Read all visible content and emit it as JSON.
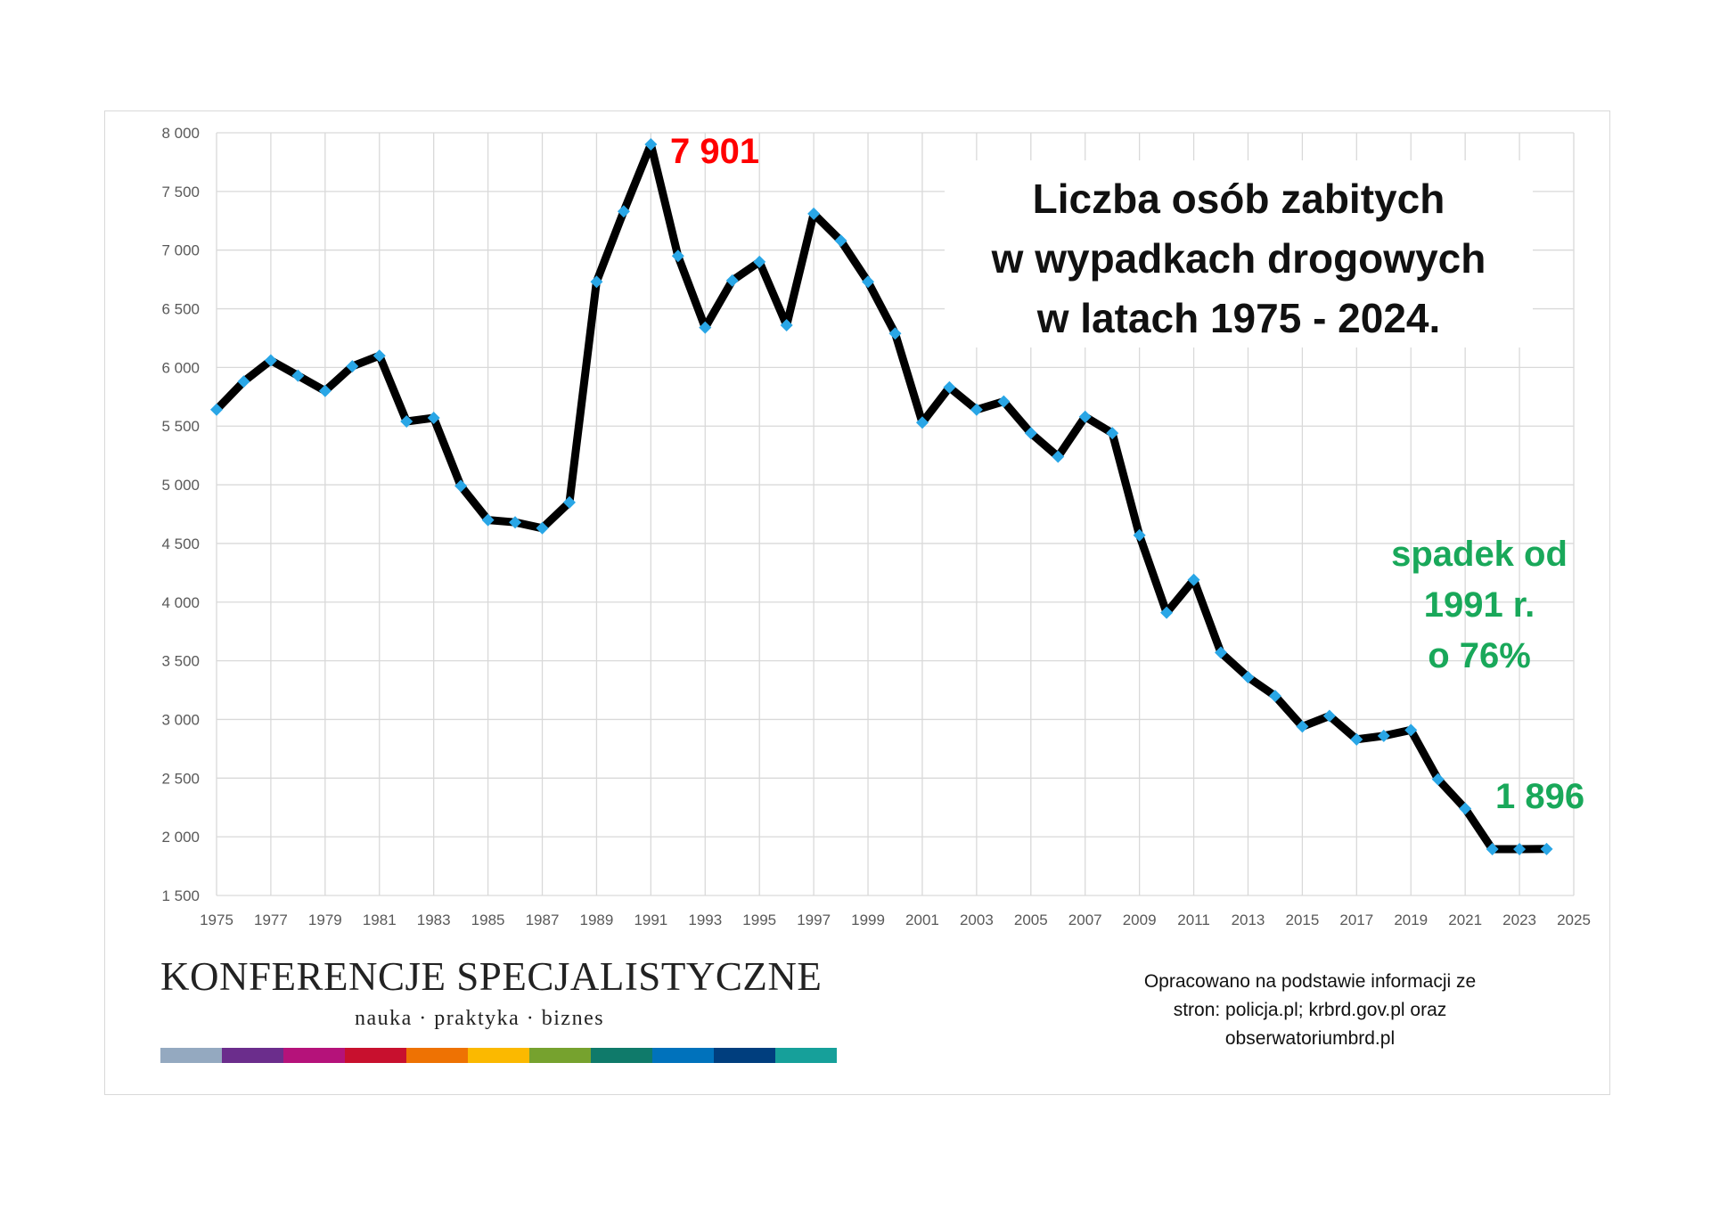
{
  "chart_data": {
    "type": "line",
    "title": "Liczba osób zabitych w wypadkach drogowych w latach 1975 - 2024.",
    "title_lines": [
      "Liczba osób zabitych",
      "w wypadkach drogowych",
      "w latach 1975 - 2024."
    ],
    "x": [
      1975,
      1976,
      1977,
      1978,
      1979,
      1980,
      1981,
      1982,
      1983,
      1984,
      1985,
      1986,
      1987,
      1988,
      1989,
      1990,
      1991,
      1992,
      1993,
      1994,
      1995,
      1996,
      1997,
      1998,
      1999,
      2000,
      2001,
      2002,
      2003,
      2004,
      2005,
      2006,
      2007,
      2008,
      2009,
      2010,
      2011,
      2012,
      2013,
      2014,
      2015,
      2016,
      2017,
      2018,
      2019,
      2020,
      2021,
      2022,
      2023,
      2024
    ],
    "series": [
      {
        "values": [
          5640,
          5880,
          6060,
          5930,
          5800,
          6010,
          6100,
          5540,
          5570,
          4990,
          4700,
          4680,
          4630,
          4850,
          6730,
          7330,
          7901,
          6950,
          6340,
          6740,
          6900,
          6360,
          7310,
          7080,
          6730,
          6290,
          5530,
          5830,
          5640,
          5710,
          5440,
          5240,
          5580,
          5440,
          4570,
          3910,
          4190,
          3570,
          3360,
          3200,
          2940,
          3030,
          2830,
          2860,
          2910,
          2490,
          2240,
          1895,
          1895,
          1896
        ],
        "line_color": "#000000",
        "marker_color": "#29a6e6"
      }
    ],
    "xlim": [
      1975,
      2025
    ],
    "ylim": [
      1500,
      8000
    ],
    "x_ticks": [
      "1975",
      "1977",
      "1979",
      "1981",
      "1983",
      "1985",
      "1987",
      "1989",
      "1991",
      "1993",
      "1995",
      "1997",
      "1999",
      "2001",
      "2003",
      "2005",
      "2007",
      "2009",
      "2011",
      "2013",
      "2015",
      "2017",
      "2019",
      "2021",
      "2023",
      "2025"
    ],
    "y_ticks": [
      "8 000",
      "7 500",
      "7 000",
      "6 500",
      "6 000",
      "5 500",
      "5 000",
      "4 500",
      "4 000",
      "3 500",
      "3 000",
      "2 500",
      "2 000",
      "1 500"
    ],
    "grid": true,
    "annotations": {
      "peak": "7 901",
      "drop_lines": [
        "spadek od",
        "1991 r.",
        "o 76%"
      ],
      "last": "1 896"
    }
  },
  "colors": {
    "peak": "#ff0000",
    "decline": "#19a85a",
    "grid": "#d9d9d9"
  },
  "logo": {
    "name": "KONFERENCJE SPECJALISTYCZNE",
    "tagline": "nauka · praktyka · biznes",
    "bar_colors": [
      "#94a9c0",
      "#6b2d8c",
      "#b5127a",
      "#c8102e",
      "#ee7203",
      "#fbb900",
      "#76a22e",
      "#0f7a6a",
      "#0072bc",
      "#003e7e",
      "#16a09a"
    ]
  },
  "source_lines": [
    "Opracowano na podstawie informacji ze",
    "stron: policja.pl; krbrd.gov.pl oraz",
    "obserwatoriumbrd.pl"
  ]
}
